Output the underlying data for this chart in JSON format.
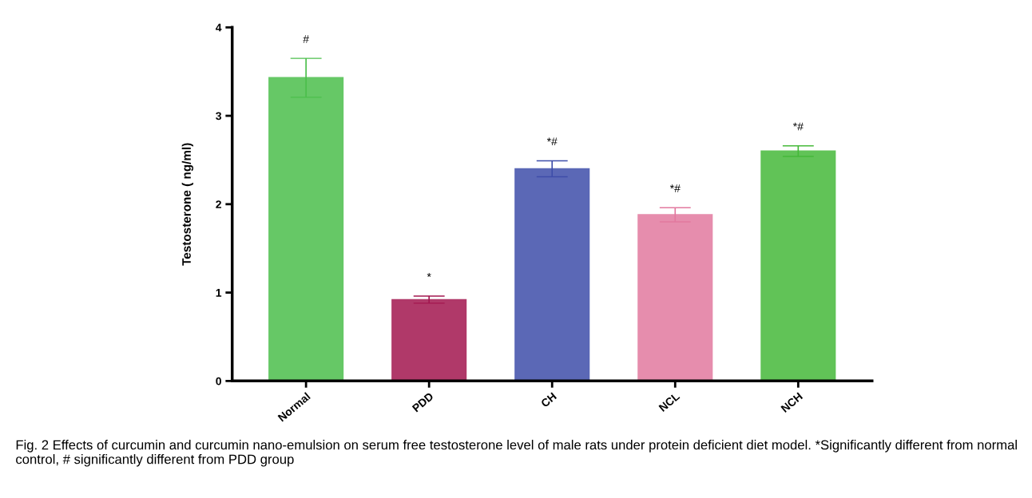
{
  "chart_data": {
    "type": "bar",
    "ylabel": "Testosterone ( ng/ml)",
    "categories": [
      "Normal",
      "PDD",
      "CH",
      "NCL",
      "NCH"
    ],
    "values": [
      3.43,
      0.92,
      2.4,
      1.88,
      2.6
    ],
    "errors": [
      0.22,
      0.04,
      0.09,
      0.08,
      0.06
    ],
    "colors": [
      "#4cbf4c",
      "#a3174f",
      "#3f4eaa",
      "#e2799f",
      "#46b93a"
    ],
    "ylim": [
      0,
      4
    ],
    "yticks": [
      0,
      1,
      2,
      3,
      4
    ],
    "grid": false,
    "annotations": [
      {
        "text": "#",
        "x": "Normal",
        "y": 3.65
      },
      {
        "text": "*",
        "x": "PDD",
        "y": 0.96
      },
      {
        "text": "*#",
        "x": "CH",
        "y": 2.49
      },
      {
        "text": "*#",
        "x": "NCL",
        "y": 1.96
      },
      {
        "text": "*#",
        "x": "NCH",
        "y": 2.66
      },
      "Fig. 2 Effects of curcumin and curcumin nano-emulsion on serum free testosterone level of male rats under protein deficient diet model. *Significantly different from normal control, # significantly different from PDD group"
    ]
  }
}
